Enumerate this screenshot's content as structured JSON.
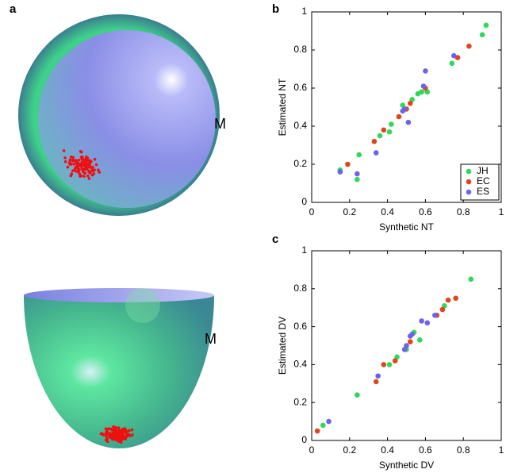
{
  "panels": {
    "a": "a",
    "b": "b",
    "c": "c"
  },
  "sphere_labels": [
    "M",
    "M"
  ],
  "chart_data": [
    {
      "type": "scatter",
      "xlabel": "Synthetic NT",
      "ylabel": "Estimated NT",
      "xlim": [
        0,
        1
      ],
      "ylim": [
        0,
        1
      ],
      "xticks": [
        0,
        0.2,
        0.4,
        0.6,
        0.8,
        1
      ],
      "yticks": [
        0,
        0.2,
        0.4,
        0.6,
        0.8,
        1
      ],
      "legend": "lower right",
      "series": [
        {
          "name": "JH",
          "color": "#2fd85a",
          "x": [
            0.15,
            0.24,
            0.25,
            0.36,
            0.41,
            0.42,
            0.48,
            0.53,
            0.56,
            0.61,
            0.74,
            0.9,
            0.92,
            0.58
          ],
          "values": [
            0.17,
            0.12,
            0.25,
            0.35,
            0.37,
            0.41,
            0.51,
            0.54,
            0.57,
            0.58,
            0.73,
            0.88,
            0.93,
            0.58
          ]
        },
        {
          "name": "EC",
          "color": "#e0461e",
          "x": [
            0.19,
            0.33,
            0.38,
            0.46,
            0.5,
            0.52,
            0.77,
            0.83,
            0.6
          ],
          "values": [
            0.2,
            0.32,
            0.38,
            0.45,
            0.49,
            0.52,
            0.76,
            0.82,
            0.6
          ]
        },
        {
          "name": "ES",
          "color": "#6a64ea",
          "x": [
            0.15,
            0.24,
            0.34,
            0.48,
            0.51,
            0.59,
            0.6,
            0.75,
            0.49
          ],
          "values": [
            0.16,
            0.15,
            0.26,
            0.48,
            0.42,
            0.61,
            0.69,
            0.77,
            0.49
          ]
        }
      ]
    },
    {
      "type": "scatter",
      "xlabel": "Synthetic DV",
      "ylabel": "Estimated DV",
      "xlim": [
        0,
        1
      ],
      "ylim": [
        0,
        1
      ],
      "xticks": [
        0,
        0.2,
        0.4,
        0.6,
        0.8,
        1
      ],
      "yticks": [
        0,
        0.2,
        0.4,
        0.6,
        0.8,
        1
      ],
      "legend": false,
      "series": [
        {
          "color": "#2fd85a",
          "x": [
            0.06,
            0.24,
            0.41,
            0.5,
            0.54,
            0.57,
            0.7,
            0.84,
            0.45
          ],
          "values": [
            0.08,
            0.24,
            0.4,
            0.48,
            0.57,
            0.53,
            0.71,
            0.85,
            0.44
          ]
        },
        {
          "color": "#e0461e",
          "x": [
            0.03,
            0.34,
            0.38,
            0.44,
            0.52,
            0.66,
            0.69,
            0.72,
            0.76
          ],
          "values": [
            0.05,
            0.31,
            0.4,
            0.42,
            0.52,
            0.66,
            0.69,
            0.74,
            0.75
          ]
        },
        {
          "color": "#6a64ea",
          "x": [
            0.09,
            0.35,
            0.5,
            0.52,
            0.53,
            0.58,
            0.61,
            0.65,
            0.49
          ],
          "values": [
            0.1,
            0.34,
            0.5,
            0.55,
            0.56,
            0.63,
            0.62,
            0.66,
            0.48
          ]
        }
      ]
    }
  ]
}
